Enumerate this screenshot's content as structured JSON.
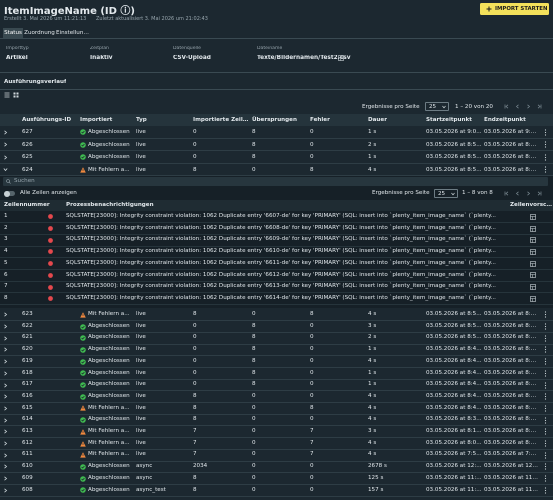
{
  "header": {
    "title": "ItemImageName (ID ⓘ)",
    "created": "Erstellt 3. Mai 2026 um 11:21:13",
    "updated": "Zuletzt aktualisiert 3. Mai 2026 um 21:02:43",
    "button": "IMPORT STARTEN"
  },
  "tabs": [
    "Status",
    "Zuordnung",
    "Einstellungen"
  ],
  "fields": [
    {
      "label": "Importtyp",
      "value": "Artikel"
    },
    {
      "label": "Zeitplan",
      "value": "Inaktiv"
    },
    {
      "label": "Datenquelle",
      "value": "CSV-Upload"
    },
    {
      "label": "Dateiname",
      "value": "Texte/Bildernamen/Test2.csv"
    }
  ],
  "icon_colors": {
    "check": "#3fb950",
    "warning": "#f0883e",
    "error": "#e5484d"
  },
  "executions": {
    "title": "Ausführungsverlauf",
    "per_page_label": "Ergebnisse pro Seite",
    "per_page": 25,
    "range": "1 – 20 von 20",
    "columns": [
      "Ausführungs-ID",
      "Importiert",
      "Typ",
      "Importierte Zeilen",
      "Übersprungen",
      "Fehler",
      "Dauer",
      "Startzeitpunkt",
      "Endzeitpunkt"
    ],
    "status_icons": [
      "check",
      "check",
      "check",
      "warning",
      "warning",
      "check",
      "check",
      "check",
      "check",
      "check",
      "check",
      "check",
      "warning",
      "check",
      "warning",
      "warning",
      "warning",
      "check",
      "check",
      "check"
    ],
    "rows": [
      [
        627,
        "Abgeschlossen",
        "live",
        0,
        8,
        0,
        "1 s",
        "03.05.2026 at 9:0...",
        "03.05.2026 at 9:0..."
      ],
      [
        626,
        "Abgeschlossen",
        "live",
        0,
        8,
        0,
        "2 s",
        "03.05.2026 at 8:5...",
        "03.05.2026 at 8:5..."
      ],
      [
        625,
        "Abgeschlossen",
        "live",
        0,
        8,
        0,
        "1 s",
        "03.05.2026 at 8:5...",
        "03.05.2026 at 8:5..."
      ],
      [
        624,
        "Mit Fehlern a...",
        "live",
        8,
        0,
        8,
        "4 s",
        "03.05.2026 at 8:5...",
        "03.05.2026 at 8:5..."
      ],
      [
        623,
        "Mit Fehlern a...",
        "live",
        8,
        0,
        8,
        "4 s",
        "03.05.2026 at 8:5...",
        "03.05.2026 at 8:5..."
      ],
      [
        622,
        "Abgeschlossen",
        "live",
        0,
        8,
        0,
        "3 s",
        "03.05.2026 at 8:5...",
        "03.05.2026 at 8:5..."
      ],
      [
        621,
        "Abgeschlossen",
        "live",
        0,
        8,
        0,
        "2 s",
        "03.05.2026 at 8:5...",
        "03.05.2026 at 8:5..."
      ],
      [
        620,
        "Abgeschlossen",
        "live",
        0,
        8,
        0,
        "1 s",
        "03.05.2026 at 8:4...",
        "03.05.2026 at 8:4..."
      ],
      [
        619,
        "Abgeschlossen",
        "live",
        0,
        8,
        0,
        "4 s",
        "03.05.2026 at 8:4...",
        "03.05.2026 at 8:4..."
      ],
      [
        618,
        "Abgeschlossen",
        "live",
        0,
        8,
        0,
        "1 s",
        "03.05.2026 at 8:4...",
        "03.05.2026 at 8:4..."
      ],
      [
        617,
        "Abgeschlossen",
        "live",
        0,
        8,
        0,
        "1 s",
        "03.05.2026 at 8:4...",
        "03.05.2026 at 8:4..."
      ],
      [
        616,
        "Abgeschlossen",
        "live",
        8,
        0,
        0,
        "4 s",
        "03.05.2026 at 8:4...",
        "03.05.2026 at 8:4..."
      ],
      [
        615,
        "Mit Fehlern a...",
        "live",
        8,
        0,
        8,
        "4 s",
        "03.05.2026 at 8:4...",
        "03.05.2026 at 8:4..."
      ],
      [
        614,
        "Abgeschlossen",
        "live",
        8,
        0,
        0,
        "4 s",
        "03.05.2026 at 8:3...",
        "03.05.2026 at 8:3..."
      ],
      [
        613,
        "Mit Fehlern a...",
        "live",
        7,
        0,
        7,
        "3 s",
        "03.05.2026 at 8:1...",
        "03.05.2026 at 8:1..."
      ],
      [
        612,
        "Mit Fehlern a...",
        "live",
        7,
        0,
        7,
        "4 s",
        "03.05.2026 at 8:0...",
        "03.05.2026 at 8:0..."
      ],
      [
        611,
        "Mit Fehlern a...",
        "live",
        7,
        0,
        7,
        "4 s",
        "03.05.2026 at 7:5...",
        "03.05.2026 at 7:5..."
      ],
      [
        610,
        "Abgeschlossen",
        "async",
        2034,
        0,
        0,
        "2678 s",
        "03.05.2026 at 12:...",
        "03.05.2026 at 12:..."
      ],
      [
        609,
        "Abgeschlossen",
        "async",
        8,
        0,
        0,
        "125 s",
        "03.05.2026 at 11:...",
        "03.05.2026 at 11:..."
      ],
      [
        608,
        "Abgeschlossen",
        "async_test",
        8,
        0,
        0,
        "157 s",
        "03.05.2026 at 11:...",
        "03.05.2026 at 11:..."
      ]
    ]
  },
  "details": {
    "search_placeholder": "Suchen",
    "toggle": "Alle Zeilen anzeigen",
    "per_page_label": "Ergebnisse pro Seite",
    "per_page": 25,
    "range": "1 – 8 von 8",
    "columns": [
      "Zeilennummer",
      "Prozessbenachrichtigungen",
      "Zeilenvorscha"
    ],
    "rows": [
      [
        1,
        "SQLSTATE[23000]: Integrity constraint violation: 1062 Duplicate entry '6607-de' for key 'PRIMARY' (SQL: insert into `plenty_item_image_name` (`plenty..."
      ],
      [
        2,
        "SQLSTATE[23000]: Integrity constraint violation: 1062 Duplicate entry '6608-de' for key 'PRIMARY' (SQL: insert into `plenty_item_image_name` (`plenty..."
      ],
      [
        3,
        "SQLSTATE[23000]: Integrity constraint violation: 1062 Duplicate entry '6609-de' for key 'PRIMARY' (SQL: insert into `plenty_item_image_name` (`plenty..."
      ],
      [
        4,
        "SQLSTATE[23000]: Integrity constraint violation: 1062 Duplicate entry '6610-de' for key 'PRIMARY' (SQL: insert into `plenty_item_image_name` (`plenty..."
      ],
      [
        5,
        "SQLSTATE[23000]: Integrity constraint violation: 1062 Duplicate entry '6611-de' for key 'PRIMARY' (SQL: insert into `plenty_item_image_name` (`plenty..."
      ],
      [
        6,
        "SQLSTATE[23000]: Integrity constraint violation: 1062 Duplicate entry '6612-de' for key 'PRIMARY' (SQL: insert into `plenty_item_image_name` (`plenty..."
      ],
      [
        7,
        "SQLSTATE[23000]: Integrity constraint violation: 1062 Duplicate entry '6613-de' for key 'PRIMARY' (SQL: insert into `plenty_item_image_name` (`plenty..."
      ],
      [
        8,
        "SQLSTATE[23000]: Integrity constraint violation: 1062 Duplicate entry '6614-de' for key 'PRIMARY' (SQL: insert into `plenty_item_image_name` (`plenty..."
      ]
    ]
  }
}
